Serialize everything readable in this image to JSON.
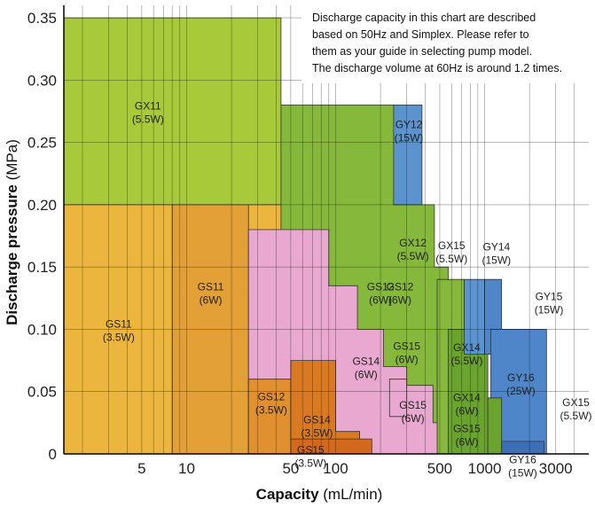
{
  "chart_data": {
    "type": "area",
    "title": "",
    "note": [
      "Discharge capacity in this chart are described",
      "based on 50Hz and Simplex. Please refer to",
      "them as your guide in selecting pump model.",
      "The discharge volume at 60Hz is around 1.2 times."
    ],
    "xlabel_bold": "Capacity",
    "xlabel_unit": " (mL/min)",
    "ylabel_bold": "Discharge pressure",
    "ylabel_unit": " (MPa)",
    "x_scale": "log",
    "xlim": [
      1.5,
      5000
    ],
    "ylim": [
      0,
      0.36
    ],
    "x_ticks": [
      {
        "value": 5,
        "label": "5"
      },
      {
        "value": 10,
        "label": "10"
      },
      {
        "value": 50,
        "label": "50"
      },
      {
        "value": 100,
        "label": "100"
      },
      {
        "value": 500,
        "label": "500"
      },
      {
        "value": 1000,
        "label": "1000"
      },
      {
        "value": 3000,
        "label": "3000"
      }
    ],
    "y_ticks": [
      {
        "value": 0,
        "label": "0"
      },
      {
        "value": 0.05,
        "label": "0.05"
      },
      {
        "value": 0.1,
        "label": "0.10"
      },
      {
        "value": 0.15,
        "label": "0.15"
      },
      {
        "value": 0.2,
        "label": "0.20"
      },
      {
        "value": 0.25,
        "label": "0.25"
      },
      {
        "value": 0.3,
        "label": "0.30"
      },
      {
        "value": 0.35,
        "label": "0.35"
      }
    ],
    "grid_x": [
      2,
      3,
      4,
      5,
      6,
      7,
      8,
      9,
      10,
      20,
      30,
      40,
      50,
      60,
      70,
      80,
      90,
      100,
      200,
      300,
      400,
      500,
      600,
      700,
      800,
      900,
      1000,
      2000,
      3000,
      4000
    ],
    "grid_y": [
      0.05,
      0.1,
      0.15,
      0.2,
      0.25,
      0.3,
      0.35
    ],
    "regions": [
      {
        "name": "GX11",
        "spec": "(5.5W)",
        "color": "#a7c93a",
        "poly": [
          [
            1.5,
            0
          ],
          [
            1.5,
            0.35
          ],
          [
            43,
            0.35
          ],
          [
            43,
            0
          ]
        ],
        "label_at": [
          5.5,
          0.275
        ]
      },
      {
        "name": "GS11",
        "spec": "(3.5W)",
        "color": "#ecb53e",
        "poly": [
          [
            1.5,
            0
          ],
          [
            1.5,
            0.2
          ],
          [
            43,
            0.2
          ],
          [
            43,
            0
          ]
        ],
        "label_at": [
          3.5,
          0.1
        ]
      },
      {
        "name": "GX12",
        "spec": "(5.5W)",
        "color": "#86b83b",
        "poly": [
          [
            43,
            0
          ],
          [
            43,
            0.28
          ],
          [
            245,
            0.28
          ],
          [
            245,
            0.2
          ],
          [
            460,
            0.2
          ],
          [
            460,
            0.15
          ],
          [
            570,
            0.15
          ],
          [
            570,
            0
          ]
        ],
        "label_at": [
          330,
          0.165
        ]
      },
      {
        "name": "GY12",
        "spec": "(15W)",
        "color": "#5b93cf",
        "poly": [
          [
            245,
            0.2
          ],
          [
            245,
            0.28
          ],
          [
            380,
            0.28
          ],
          [
            380,
            0.2
          ]
        ],
        "label_at": [
          310,
          0.26
        ]
      },
      {
        "name": "GS11",
        "spec": "(6W)",
        "color": "#e3a036",
        "poly": [
          [
            8,
            0
          ],
          [
            8,
            0.2
          ],
          [
            26,
            0.2
          ],
          [
            26,
            0
          ]
        ],
        "label_at": [
          14.5,
          0.13
        ]
      },
      {
        "name": "GS12",
        "spec": "(6W)",
        "color": "#e9a8cf",
        "poly": [
          [
            26,
            0
          ],
          [
            26,
            0.18
          ],
          [
            90,
            0.18
          ],
          [
            90,
            0.135
          ],
          [
            140,
            0.135
          ],
          [
            140,
            0.1
          ],
          [
            210,
            0.1
          ],
          [
            210,
            0.07
          ],
          [
            300,
            0.07
          ],
          [
            300,
            0.055
          ],
          [
            450,
            0.055
          ],
          [
            450,
            0.025
          ],
          [
            560,
            0.025
          ],
          [
            560,
            0.01
          ],
          [
            720,
            0.01
          ],
          [
            720,
            0
          ]
        ],
        "label_at": [
          270,
          0.13
        ]
      },
      {
        "name": "GS12",
        "spec": "(3.5W)",
        "color": "#e0902f",
        "poly": [
          [
            26,
            0
          ],
          [
            26,
            0.06
          ],
          [
            50,
            0.06
          ],
          [
            50,
            0
          ]
        ],
        "label_at": [
          37,
          0.0415
        ]
      },
      {
        "name": "GS14",
        "spec": "(3.5W)",
        "color": "#d97a22",
        "poly": [
          [
            50,
            0
          ],
          [
            50,
            0.075
          ],
          [
            100,
            0.075
          ],
          [
            100,
            0.018
          ],
          [
            145,
            0.018
          ],
          [
            145,
            0
          ]
        ],
        "label_at": [
          75,
          0.023
        ]
      },
      {
        "name": "GS15",
        "spec": "(3.5W)",
        "color": "#d2691e",
        "poly": [
          [
            50,
            0
          ],
          [
            50,
            0.012
          ],
          [
            175,
            0.012
          ],
          [
            175,
            0
          ]
        ],
        "label_at": [
          68,
          -0.001
        ]
      },
      {
        "name": "GS15",
        "spec": "(6W)",
        "color": "#e9a8cf",
        "poly": [
          [
            230,
            0.03
          ],
          [
            230,
            0.06
          ],
          [
            300,
            0.06
          ],
          [
            300,
            0.03
          ]
        ],
        "label_at": [
          300,
          0.082
        ]
      },
      {
        "name": "GX15",
        "spec": "(5.5W)",
        "color": "#86b83b",
        "poly": [
          [
            480,
            0
          ],
          [
            480,
            0.14
          ],
          [
            730,
            0.14
          ],
          [
            730,
            0
          ]
        ],
        "label_at": [
          600,
          0.163
        ]
      },
      {
        "name": "GX14",
        "spec": "(5.5W)",
        "color": "#6aa42e",
        "poly": [
          [
            570,
            0
          ],
          [
            570,
            0.1
          ],
          [
            1050,
            0.1
          ],
          [
            1050,
            0
          ]
        ],
        "label_at": [
          760,
          0.081
        ]
      },
      {
        "name": "GY14",
        "spec": "(15W)",
        "color": "#5b93cf",
        "poly": [
          [
            730,
            0.08
          ],
          [
            730,
            0.14
          ],
          [
            1000,
            0.14
          ],
          [
            1000,
            0.08
          ]
        ],
        "label_at": [
          1200,
          0.162
        ]
      },
      {
        "name": "GY15",
        "spec": "(15W)",
        "color": "#4f86c9",
        "poly": [
          [
            1000,
            0.08
          ],
          [
            1000,
            0.14
          ],
          [
            1300,
            0.14
          ],
          [
            1300,
            0.08
          ]
        ],
        "label_at": [
          2700,
          0.122
        ]
      },
      {
        "name": "GY16",
        "spec": "(25W)",
        "color": "#4f86c9",
        "poly": [
          [
            1100,
            0
          ],
          [
            1100,
            0.1
          ],
          [
            2600,
            0.1
          ],
          [
            2600,
            0
          ]
        ],
        "label_at": [
          1750,
          0.057
        ]
      },
      {
        "name": "GX15",
        "spec": "(5.5W)",
        "color": "#6aa42e",
        "poly": [
          [
            1050,
            0
          ],
          [
            1050,
            0.045
          ],
          [
            1300,
            0.045
          ],
          [
            1300,
            0
          ]
        ],
        "label_at": [
          4100,
          0.037
        ]
      },
      {
        "name": "GY16",
        "spec": "(15W)",
        "color": "#3d6fb6",
        "poly": [
          [
            1300,
            0
          ],
          [
            1300,
            0.01
          ],
          [
            2500,
            0.01
          ],
          [
            2500,
            0
          ]
        ],
        "label_at": [
          1800,
          -0.009
        ]
      }
    ],
    "inline_labels": [
      {
        "name": "GS12",
        "spec": "(6W)",
        "at": [
          200,
          0.13
        ]
      },
      {
        "name": "GS14",
        "spec": "(6W)",
        "at": [
          160,
          0.07
        ]
      },
      {
        "name": "GS15",
        "spec": "(6W)",
        "at": [
          330,
          0.035
        ]
      },
      {
        "name": "GX14",
        "spec": "(6W)",
        "at": [
          760,
          0.041
        ]
      },
      {
        "name": "GS15",
        "spec": "(6W)",
        "at": [
          760,
          0.016
        ]
      }
    ]
  }
}
